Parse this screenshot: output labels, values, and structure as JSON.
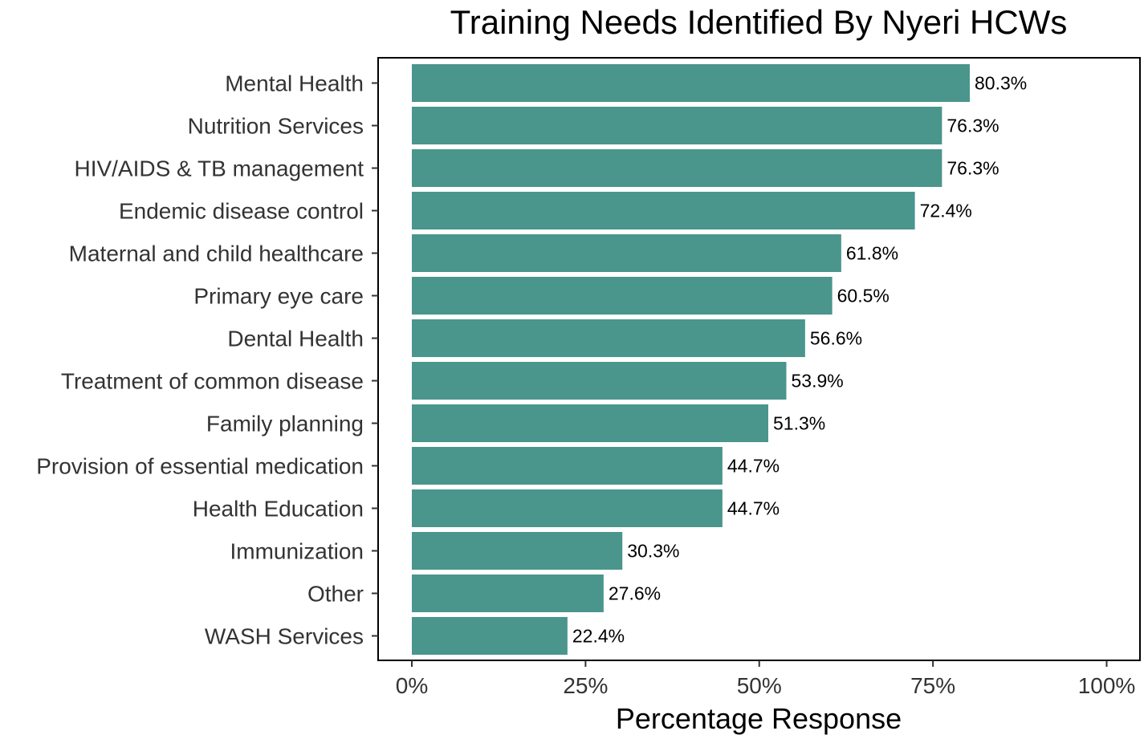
{
  "chart_data": {
    "type": "bar",
    "orientation": "horizontal",
    "title": "Training Needs Identified By Nyeri HCWs",
    "xlabel": "Percentage Response",
    "ylabel": "",
    "xlim": [
      0,
      100
    ],
    "x_ticks": [
      "0%",
      "25%",
      "50%",
      "75%",
      "100%"
    ],
    "x_tick_values": [
      0,
      25,
      50,
      75,
      100
    ],
    "categories": [
      "Mental Health",
      "Nutrition Services",
      "HIV/AIDS & TB management",
      "Endemic disease control",
      "Maternal and child healthcare",
      "Primary eye care",
      "Dental Health",
      "Treatment of common disease",
      "Family planning",
      "Provision of essential medication",
      "Health Education",
      "Immunization",
      "Other",
      "WASH Services"
    ],
    "values": [
      80.3,
      76.3,
      76.3,
      72.4,
      61.8,
      60.5,
      56.6,
      53.9,
      51.3,
      44.7,
      44.7,
      30.3,
      27.6,
      22.4
    ],
    "data_labels": [
      "80.3%",
      "76.3%",
      "76.3%",
      "72.4%",
      "61.8%",
      "60.5%",
      "56.6%",
      "53.9%",
      "51.3%",
      "44.7%",
      "44.7%",
      "30.3%",
      "27.6%",
      "22.4%"
    ],
    "bar_color": "#4a958c",
    "grid": false,
    "legend": "none"
  }
}
